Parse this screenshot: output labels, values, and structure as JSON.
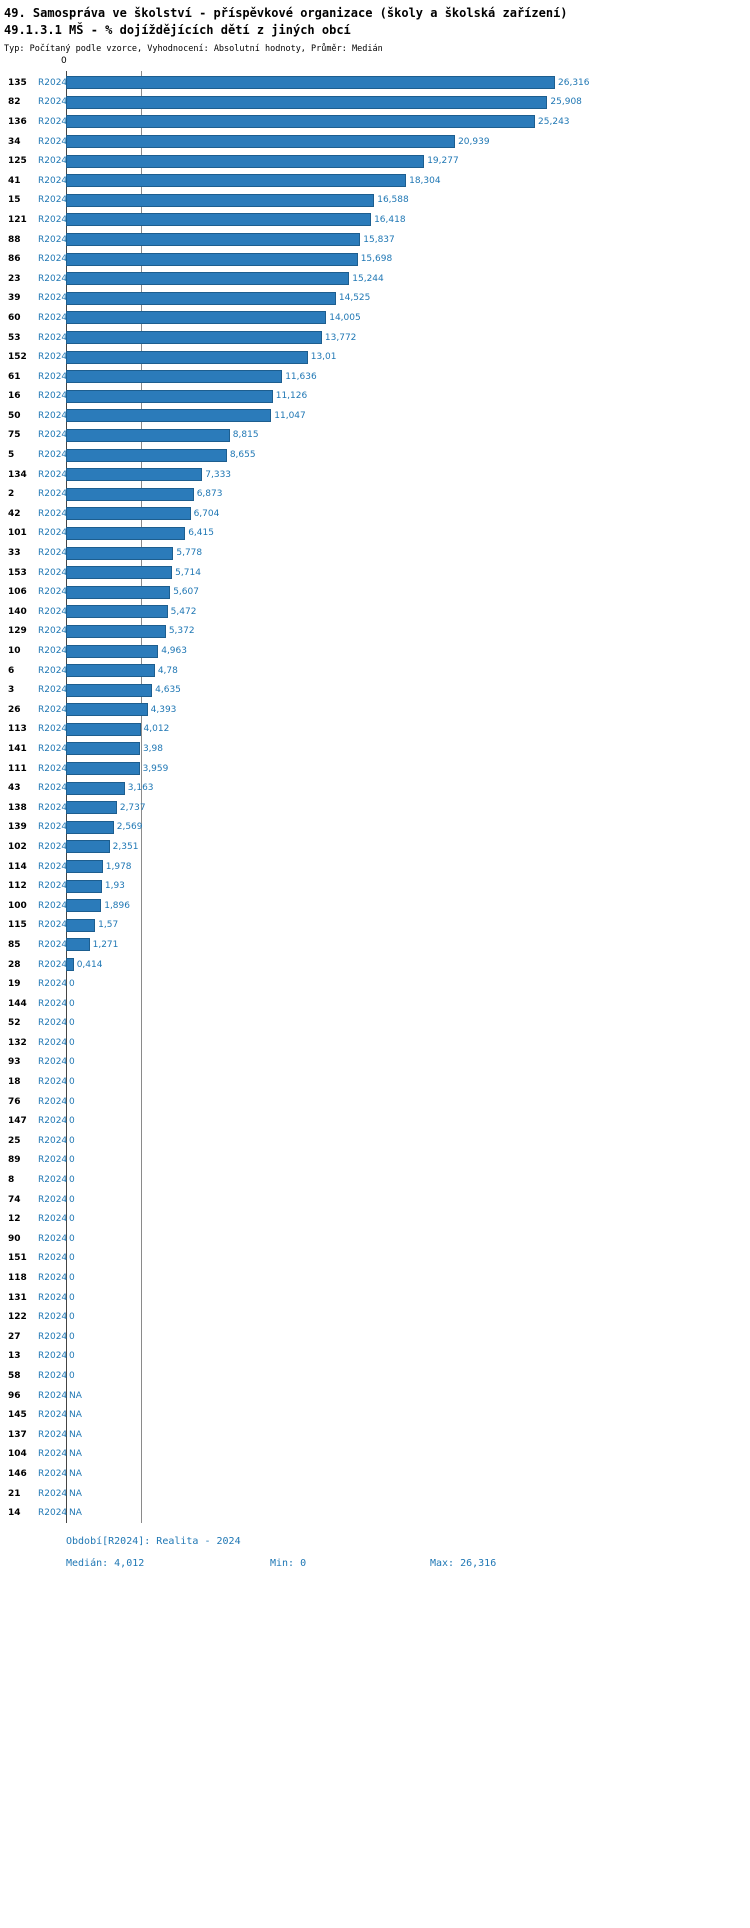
{
  "header": {
    "title_line1": "49. Samospráva ve školství - příspěvkové organizace (školy a školská zařízení)",
    "title_line2": "49.1.3.1 MŠ - % dojíždějících dětí z jiných obcí",
    "meta": "Typ: Počítaný podle vzorce, Vyhodnocení: Absolutní hodnoty, Průměr: Medián"
  },
  "chart_data": {
    "type": "bar",
    "orientation": "horizontal",
    "x_tick_zero": "0",
    "period_label": "R2024",
    "xlim": [
      0,
      26.316
    ],
    "median": 4.012,
    "grid": false,
    "bar_color": "#2b7bba",
    "bar_border_color": "#1d5e8f",
    "label_color": "#1f77b4",
    "rows": [
      {
        "id": "135",
        "value": 26.316,
        "label": "26,316"
      },
      {
        "id": "82",
        "value": 25.908,
        "label": "25,908"
      },
      {
        "id": "136",
        "value": 25.243,
        "label": "25,243"
      },
      {
        "id": "34",
        "value": 20.939,
        "label": "20,939"
      },
      {
        "id": "125",
        "value": 19.277,
        "label": "19,277"
      },
      {
        "id": "41",
        "value": 18.304,
        "label": "18,304"
      },
      {
        "id": "15",
        "value": 16.588,
        "label": "16,588"
      },
      {
        "id": "121",
        "value": 16.418,
        "label": "16,418"
      },
      {
        "id": "88",
        "value": 15.837,
        "label": "15,837"
      },
      {
        "id": "86",
        "value": 15.698,
        "label": "15,698"
      },
      {
        "id": "23",
        "value": 15.244,
        "label": "15,244"
      },
      {
        "id": "39",
        "value": 14.525,
        "label": "14,525"
      },
      {
        "id": "60",
        "value": 14.005,
        "label": "14,005"
      },
      {
        "id": "53",
        "value": 13.772,
        "label": "13,772"
      },
      {
        "id": "152",
        "value": 13.01,
        "label": "13,01"
      },
      {
        "id": "61",
        "value": 11.636,
        "label": "11,636"
      },
      {
        "id": "16",
        "value": 11.126,
        "label": "11,126"
      },
      {
        "id": "50",
        "value": 11.047,
        "label": "11,047"
      },
      {
        "id": "75",
        "value": 8.815,
        "label": "8,815"
      },
      {
        "id": "5",
        "value": 8.655,
        "label": "8,655"
      },
      {
        "id": "134",
        "value": 7.333,
        "label": "7,333"
      },
      {
        "id": "2",
        "value": 6.873,
        "label": "6,873"
      },
      {
        "id": "42",
        "value": 6.704,
        "label": "6,704"
      },
      {
        "id": "101",
        "value": 6.415,
        "label": "6,415"
      },
      {
        "id": "33",
        "value": 5.778,
        "label": "5,778"
      },
      {
        "id": "153",
        "value": 5.714,
        "label": "5,714"
      },
      {
        "id": "106",
        "value": 5.607,
        "label": "5,607"
      },
      {
        "id": "140",
        "value": 5.472,
        "label": "5,472"
      },
      {
        "id": "129",
        "value": 5.372,
        "label": "5,372"
      },
      {
        "id": "10",
        "value": 4.963,
        "label": "4,963"
      },
      {
        "id": "6",
        "value": 4.78,
        "label": "4,78"
      },
      {
        "id": "3",
        "value": 4.635,
        "label": "4,635"
      },
      {
        "id": "26",
        "value": 4.393,
        "label": "4,393"
      },
      {
        "id": "113",
        "value": 4.012,
        "label": "4,012"
      },
      {
        "id": "141",
        "value": 3.98,
        "label": "3,98"
      },
      {
        "id": "111",
        "value": 3.959,
        "label": "3,959"
      },
      {
        "id": "43",
        "value": 3.163,
        "label": "3,163"
      },
      {
        "id": "138",
        "value": 2.737,
        "label": "2,737"
      },
      {
        "id": "139",
        "value": 2.569,
        "label": "2,569"
      },
      {
        "id": "102",
        "value": 2.351,
        "label": "2,351"
      },
      {
        "id": "114",
        "value": 1.978,
        "label": "1,978"
      },
      {
        "id": "112",
        "value": 1.93,
        "label": "1,93"
      },
      {
        "id": "100",
        "value": 1.896,
        "label": "1,896"
      },
      {
        "id": "115",
        "value": 1.57,
        "label": "1,57"
      },
      {
        "id": "85",
        "value": 1.271,
        "label": "1,271"
      },
      {
        "id": "28",
        "value": 0.414,
        "label": "0,414"
      },
      {
        "id": "19",
        "value": 0,
        "label": "0"
      },
      {
        "id": "144",
        "value": 0,
        "label": "0"
      },
      {
        "id": "52",
        "value": 0,
        "label": "0"
      },
      {
        "id": "132",
        "value": 0,
        "label": "0"
      },
      {
        "id": "93",
        "value": 0,
        "label": "0"
      },
      {
        "id": "18",
        "value": 0,
        "label": "0"
      },
      {
        "id": "76",
        "value": 0,
        "label": "0"
      },
      {
        "id": "147",
        "value": 0,
        "label": "0"
      },
      {
        "id": "25",
        "value": 0,
        "label": "0"
      },
      {
        "id": "89",
        "value": 0,
        "label": "0"
      },
      {
        "id": "8",
        "value": 0,
        "label": "0"
      },
      {
        "id": "74",
        "value": 0,
        "label": "0"
      },
      {
        "id": "12",
        "value": 0,
        "label": "0"
      },
      {
        "id": "90",
        "value": 0,
        "label": "0"
      },
      {
        "id": "151",
        "value": 0,
        "label": "0"
      },
      {
        "id": "118",
        "value": 0,
        "label": "0"
      },
      {
        "id": "131",
        "value": 0,
        "label": "0"
      },
      {
        "id": "122",
        "value": 0,
        "label": "0"
      },
      {
        "id": "27",
        "value": 0,
        "label": "0"
      },
      {
        "id": "13",
        "value": 0,
        "label": "0"
      },
      {
        "id": "58",
        "value": 0,
        "label": "0"
      },
      {
        "id": "96",
        "value": null,
        "label": "NA"
      },
      {
        "id": "145",
        "value": null,
        "label": "NA"
      },
      {
        "id": "137",
        "value": null,
        "label": "NA"
      },
      {
        "id": "104",
        "value": null,
        "label": "NA"
      },
      {
        "id": "146",
        "value": null,
        "label": "NA"
      },
      {
        "id": "21",
        "value": null,
        "label": "NA"
      },
      {
        "id": "14",
        "value": null,
        "label": "NA"
      }
    ]
  },
  "footer": {
    "period": "Období[R2024]: Realita - 2024",
    "median": "Medián: 4,012",
    "min": "Min: 0",
    "max": "Max: 26,316"
  }
}
